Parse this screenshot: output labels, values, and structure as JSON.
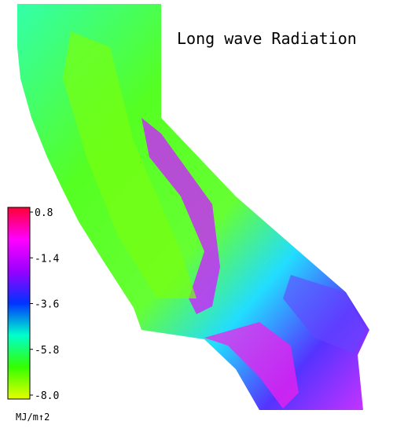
{
  "chart_data": {
    "type": "colormap",
    "title": "Long wave Radiation",
    "colorbar_label": "MJ/m↑2",
    "clim": [
      -8,
      0.8
    ],
    "colorbar_ticks": [
      0.8,
      -1.4,
      -3.6,
      {
        "value": -8,
        "label": "-8.0"
      },
      -5.8
    ],
    "colors": [
      "#e6ff00",
      "#33ff00",
      "#00ffcc",
      "#0033ff",
      "#9900ff",
      "#ff00ff",
      "#ff0033"
    ]
  }
}
